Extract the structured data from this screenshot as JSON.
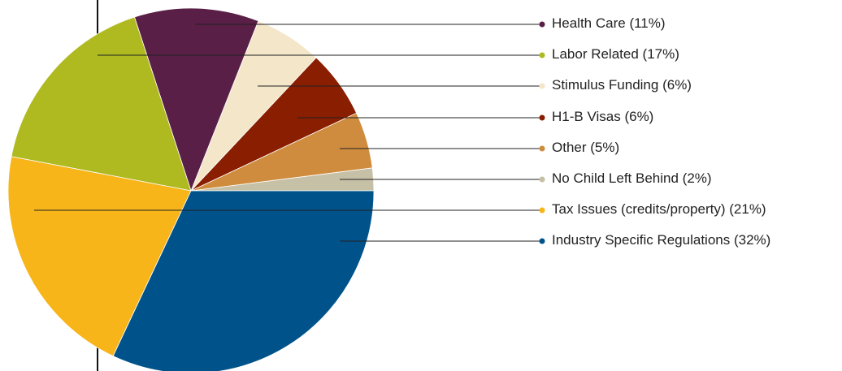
{
  "chart_data": {
    "type": "pie",
    "categories": [
      "No Child Left Behind",
      "Other",
      "H1-B Visas",
      "Stimulus Funding",
      "Health Care",
      "Labor Related",
      "Tax Issues (credits/property)",
      "Industry Specific Regulations"
    ],
    "values": [
      2,
      5,
      6,
      6,
      11,
      17,
      21,
      32
    ],
    "value_labels": [
      "(2%)",
      "(5%)",
      "(6%)",
      "(6%)",
      "(11%)",
      "(17%)",
      "(21%)",
      "(32%)"
    ],
    "colors": [
      "#c6c0a6",
      "#cf8c3e",
      "#8a1e00",
      "#f3e6c9",
      "#5a1f47",
      "#afba21",
      "#f8b519",
      "#00538a"
    ]
  }
}
